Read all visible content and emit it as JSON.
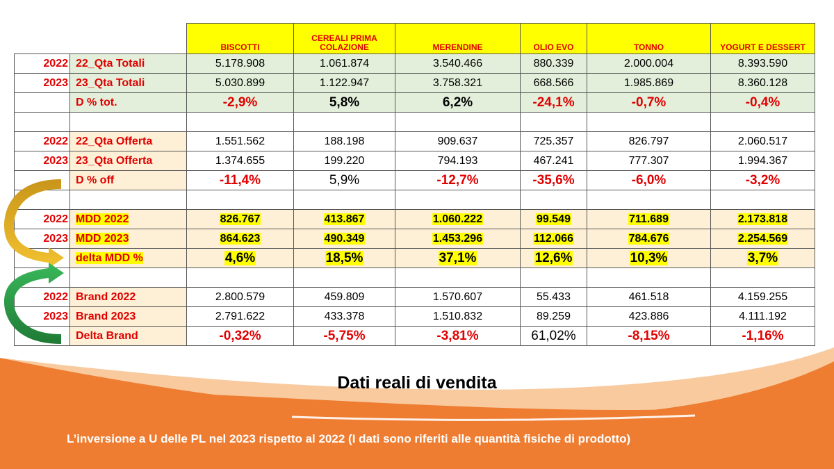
{
  "headers": [
    "BISCOTTI",
    "CEREALI PRIMA COLAZIONE",
    "MERENDINE",
    "OLIO EVO",
    "TONNO",
    "YOGURT E DESSERT"
  ],
  "rows": [
    {
      "year": "2022",
      "label": "22_Qta Totali",
      "values": [
        "5.178.908",
        "1.061.874",
        "3.540.466",
        "880.339",
        "2.000.004",
        "8.393.590"
      ]
    },
    {
      "year": "2023",
      "label": "23_Qta Totali",
      "values": [
        "5.030.899",
        "1.122.947",
        "3.758.321",
        "668.566",
        "1.985.869",
        "8.360.128"
      ]
    },
    {
      "year": "",
      "label": "D % tot.",
      "values": [
        "-2,9%",
        "5,8%",
        "6,2%",
        "-24,1%",
        "-0,7%",
        "-0,4%"
      ]
    },
    {
      "year": "2022",
      "label": "22_Qta Offerta",
      "values": [
        "1.551.562",
        "188.198",
        "909.637",
        "725.357",
        "826.797",
        "2.060.517"
      ]
    },
    {
      "year": "2023",
      "label": "23_Qta Offerta",
      "values": [
        "1.374.655",
        "199.220",
        "794.193",
        "467.241",
        "777.307",
        "1.994.367"
      ]
    },
    {
      "year": "",
      "label": "D % off",
      "values": [
        "-11,4%",
        "5,9%",
        "-12,7%",
        "-35,6%",
        "-6,0%",
        "-3,2%"
      ]
    },
    {
      "year": "2022",
      "label": "MDD 2022",
      "values": [
        "826.767",
        "413.867",
        "1.060.222",
        "99.549",
        "711.689",
        "2.173.818"
      ]
    },
    {
      "year": "2023",
      "label": "MDD 2023",
      "values": [
        "864.623",
        "490.349",
        "1.453.296",
        "112.066",
        "784.676",
        "2.254.569"
      ]
    },
    {
      "year": "",
      "label": "delta MDD %",
      "values": [
        "4,6%",
        "18,5%",
        "37,1%",
        "12,6%",
        "10,3%",
        "3,7%"
      ]
    },
    {
      "year": "2022",
      "label": "Brand 2022",
      "values": [
        "2.800.579",
        "459.809",
        "1.570.607",
        "55.433",
        "461.518",
        "4.159.255"
      ]
    },
    {
      "year": "2023",
      "label": "Brand 2023",
      "values": [
        "2.791.622",
        "433.378",
        "1.510.832",
        "89.259",
        "423.886",
        "4.111.192"
      ]
    },
    {
      "year": "",
      "label": "Delta Brand",
      "values": [
        "-0,32%",
        "-5,75%",
        "-3,81%",
        "61,02%",
        "-8,15%",
        "-1,16%"
      ]
    }
  ],
  "subtitle": "Dati reali di vendita",
  "footer": "L’inversione a U delle PL nel 2023 rispetto al 2022  (I dati sono riferiti alle quantità fisiche  di prodotto)",
  "colors": {
    "header_fill": "#ffff00",
    "accent_red": "#e00000",
    "green_band": "#e3efda",
    "peach_band": "#fdf0d6",
    "wave_orange": "#ee7d31",
    "arrow_gold": "#d9a521",
    "arrow_green": "#2e9e4c"
  }
}
